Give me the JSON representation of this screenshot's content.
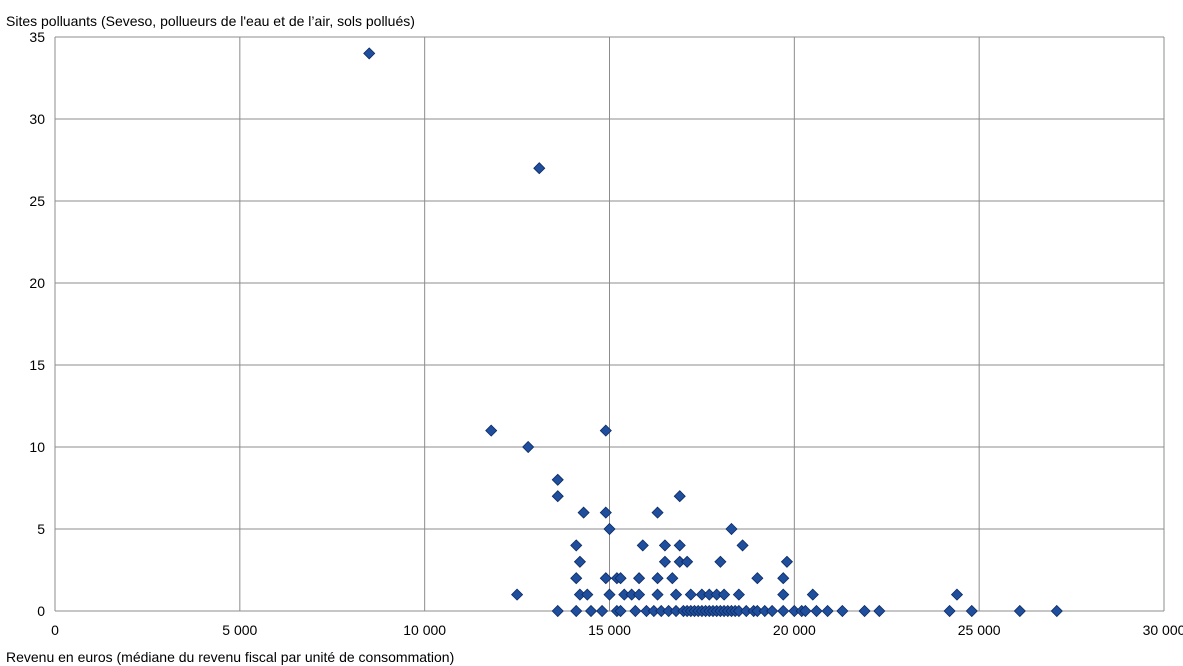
{
  "chart_data": {
    "type": "scatter",
    "title": "",
    "ylabel": "Sites polluants (Seveso, pollueurs de l'eau et de l’air, sols pollués)",
    "xlabel": "Revenu en euros (médiane du revenu fiscal par unité de consommation)",
    "xlim": [
      0,
      30000
    ],
    "ylim": [
      0,
      35
    ],
    "xticks": [
      0,
      5000,
      10000,
      15000,
      20000,
      25000,
      30000
    ],
    "xtick_labels": [
      "0",
      "5 000",
      "10 000",
      "15 000",
      "20 000",
      "25 000",
      "30 000"
    ],
    "yticks": [
      0,
      5,
      10,
      15,
      20,
      25,
      30,
      35
    ],
    "ytick_labels": [
      "0",
      "5",
      "10",
      "15",
      "20",
      "25",
      "30",
      "35"
    ],
    "grid": true,
    "legend": "none",
    "marker": "diamond",
    "marker_color": "#1f4e9c",
    "marker_edge_color": "#0d2a63",
    "grid_color": "#8c8c8c",
    "points": [
      [
        8500,
        34
      ],
      [
        13100,
        27
      ],
      [
        11800,
        11
      ],
      [
        14900,
        11
      ],
      [
        12800,
        10
      ],
      [
        13600,
        8
      ],
      [
        13600,
        7
      ],
      [
        16900,
        7
      ],
      [
        14300,
        6
      ],
      [
        14900,
        6
      ],
      [
        16300,
        6
      ],
      [
        15000,
        5
      ],
      [
        18300,
        5
      ],
      [
        14100,
        4
      ],
      [
        15900,
        4
      ],
      [
        16500,
        4
      ],
      [
        16900,
        4
      ],
      [
        18600,
        4
      ],
      [
        14200,
        3
      ],
      [
        16500,
        3
      ],
      [
        16900,
        3
      ],
      [
        17100,
        3
      ],
      [
        18000,
        3
      ],
      [
        19800,
        3
      ],
      [
        14100,
        2
      ],
      [
        14900,
        2
      ],
      [
        15200,
        2
      ],
      [
        15300,
        2
      ],
      [
        15800,
        2
      ],
      [
        16300,
        2
      ],
      [
        16700,
        2
      ],
      [
        19000,
        2
      ],
      [
        19700,
        2
      ],
      [
        12500,
        1
      ],
      [
        14200,
        1
      ],
      [
        14400,
        1
      ],
      [
        15000,
        1
      ],
      [
        15400,
        1
      ],
      [
        15600,
        1
      ],
      [
        15800,
        1
      ],
      [
        16300,
        1
      ],
      [
        16800,
        1
      ],
      [
        17200,
        1
      ],
      [
        17500,
        1
      ],
      [
        17700,
        1
      ],
      [
        17900,
        1
      ],
      [
        18100,
        1
      ],
      [
        18500,
        1
      ],
      [
        19700,
        1
      ],
      [
        20500,
        1
      ],
      [
        24400,
        1
      ],
      [
        13600,
        0
      ],
      [
        14100,
        0
      ],
      [
        14500,
        0
      ],
      [
        14800,
        0
      ],
      [
        15200,
        0
      ],
      [
        15300,
        0
      ],
      [
        15700,
        0
      ],
      [
        16000,
        0
      ],
      [
        16200,
        0
      ],
      [
        16400,
        0
      ],
      [
        16600,
        0
      ],
      [
        16800,
        0
      ],
      [
        17000,
        0
      ],
      [
        17100,
        0
      ],
      [
        17200,
        0
      ],
      [
        17300,
        0
      ],
      [
        17400,
        0
      ],
      [
        17500,
        0
      ],
      [
        17600,
        0
      ],
      [
        17700,
        0
      ],
      [
        17800,
        0
      ],
      [
        17900,
        0
      ],
      [
        18000,
        0
      ],
      [
        18100,
        0
      ],
      [
        18200,
        0
      ],
      [
        18300,
        0
      ],
      [
        18400,
        0
      ],
      [
        18500,
        0
      ],
      [
        18700,
        0
      ],
      [
        18900,
        0
      ],
      [
        19000,
        0
      ],
      [
        19200,
        0
      ],
      [
        19400,
        0
      ],
      [
        19700,
        0
      ],
      [
        20000,
        0
      ],
      [
        20200,
        0
      ],
      [
        20300,
        0
      ],
      [
        20600,
        0
      ],
      [
        20900,
        0
      ],
      [
        21300,
        0
      ],
      [
        21900,
        0
      ],
      [
        22300,
        0
      ],
      [
        24200,
        0
      ],
      [
        24800,
        0
      ],
      [
        26100,
        0
      ],
      [
        27100,
        0
      ]
    ]
  }
}
